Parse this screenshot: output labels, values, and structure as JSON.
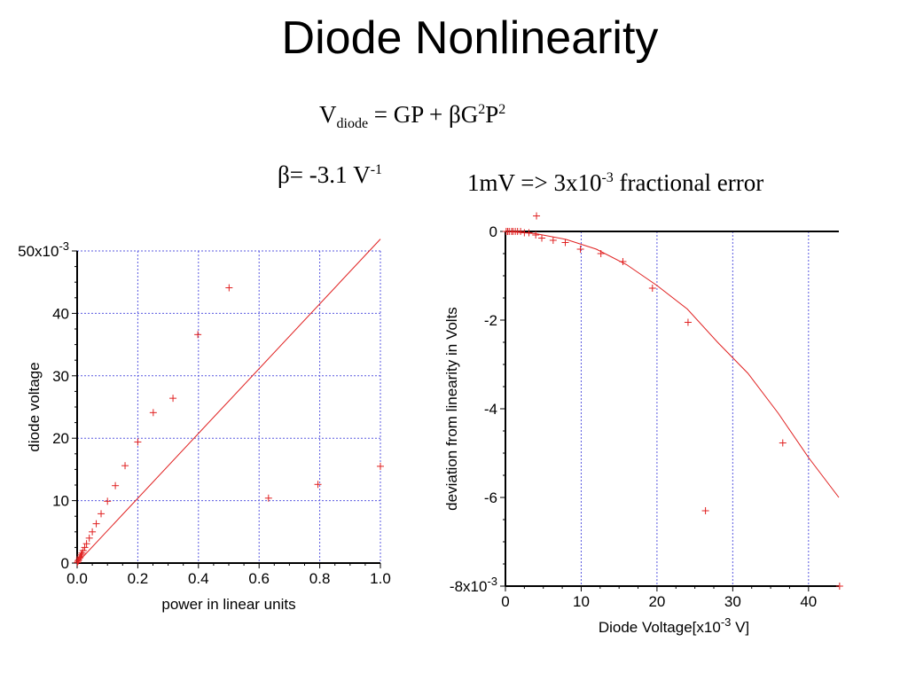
{
  "slide": {
    "title": "Diode Nonlinearity",
    "formula": {
      "v": "V",
      "v_sub": "diode",
      "mid": " = GP + βG",
      "exp1": "2",
      "p": "P",
      "exp2": "2"
    },
    "beta": {
      "text": "β= -3.1 V",
      "exp": "-1"
    },
    "error": {
      "text1": "1mV => 3x10",
      "exp": "-3",
      "text2": " fractional error"
    }
  },
  "chart_data": [
    {
      "type": "scatter",
      "title": "",
      "xlabel": "power in linear units",
      "ylabel": "diode voltage",
      "xlim": [
        0,
        1.0
      ],
      "ylim": [
        0,
        0.05
      ],
      "grid": true,
      "grid_color": "#5a5ae0",
      "marker_color": "#e02020",
      "xticks": [
        {
          "v": 0.0,
          "label": "0.0"
        },
        {
          "v": 0.2,
          "label": "0.2"
        },
        {
          "v": 0.4,
          "label": "0.4"
        },
        {
          "v": 0.6,
          "label": "0.6"
        },
        {
          "v": 0.8,
          "label": "0.8"
        },
        {
          "v": 1.0,
          "label": "1.0"
        }
      ],
      "yticks": [
        {
          "v": 0,
          "label": "0"
        },
        {
          "v": 0.01,
          "label": "10"
        },
        {
          "v": 0.02,
          "label": "20"
        },
        {
          "v": 0.03,
          "label": "30"
        },
        {
          "v": 0.04,
          "label": "40"
        },
        {
          "v": 0.05,
          "label": "50x10",
          "exp": "-3"
        }
      ],
      "series": [
        {
          "kind": "points",
          "x": [
            0.001,
            0.003,
            0.005,
            0.008,
            0.01,
            0.013,
            0.016,
            0.02,
            0.025,
            0.031,
            0.04,
            0.05,
            0.063,
            0.079,
            0.1,
            0.126,
            0.158,
            0.2,
            0.251,
            0.316,
            0.398,
            0.501,
            0.631,
            0.794,
            1.0
          ],
          "y": [
            0.0001,
            0.0003,
            0.0005,
            0.0008,
            0.001,
            0.0013,
            0.0016,
            0.002,
            0.0025,
            0.0031,
            0.004,
            0.005,
            0.0063,
            0.0079,
            0.0099,
            0.0124,
            0.0156,
            0.0194,
            0.0241,
            0.0264,
            0.0366,
            0.0441,
            0.0104,
            0.0126,
            0.0155
          ]
        },
        {
          "kind": "line",
          "x": [
            0,
            1.0
          ],
          "y": [
            0,
            0.0519
          ]
        }
      ]
    },
    {
      "type": "scatter",
      "title": "",
      "xlabel": "Diode Voltage[x10",
      "xlabel_exp": "-3",
      "xlabel_suffix": " V]",
      "ylabel": "deviation from linearity in Volts",
      "xlim": [
        0,
        44
      ],
      "ylim": [
        -0.008,
        0.0
      ],
      "grid": true,
      "grid_color": "#5a5ae0",
      "marker_color": "#e02020",
      "xticks": [
        {
          "v": 0,
          "label": "0"
        },
        {
          "v": 10,
          "label": "10"
        },
        {
          "v": 20,
          "label": "20"
        },
        {
          "v": 30,
          "label": "30"
        },
        {
          "v": 40,
          "label": "40"
        }
      ],
      "yticks": [
        {
          "v": 0,
          "label": "0"
        },
        {
          "v": -0.002,
          "label": "-2"
        },
        {
          "v": -0.004,
          "label": "-4"
        },
        {
          "v": -0.006,
          "label": "-6"
        },
        {
          "v": -0.008,
          "label": "-8x10",
          "exp": "-3"
        }
      ],
      "series": [
        {
          "kind": "points",
          "x": [
            0.1,
            0.3,
            0.5,
            0.8,
            1.0,
            1.3,
            1.6,
            2.0,
            2.5,
            3.1,
            4.0,
            4.8,
            6.3,
            7.9,
            9.9,
            12.6,
            15.5,
            19.4,
            24.1,
            26.4,
            36.6,
            44.1,
            4.1
          ],
          "y": [
            0.0,
            0.0,
            0.0,
            0.0,
            0.0,
            0.0,
            0.0,
            0.0,
            -3e-05,
            -3e-05,
            -8e-05,
            -0.00015,
            -0.0002,
            -0.00025,
            -0.0004,
            -0.0005,
            -0.00068,
            -0.00128,
            -0.00205,
            -0.0063,
            -0.00477,
            -0.008,
            0.00035
          ]
        },
        {
          "kind": "line",
          "x": [
            0,
            4,
            8,
            12,
            16,
            20,
            24,
            28,
            32,
            36,
            40,
            44
          ],
          "y": [
            0.0,
            -5e-05,
            -0.00018,
            -0.0004,
            -0.00075,
            -0.00122,
            -0.00175,
            -0.0025,
            -0.0032,
            -0.0041,
            -0.0051,
            -0.006
          ]
        }
      ]
    }
  ]
}
